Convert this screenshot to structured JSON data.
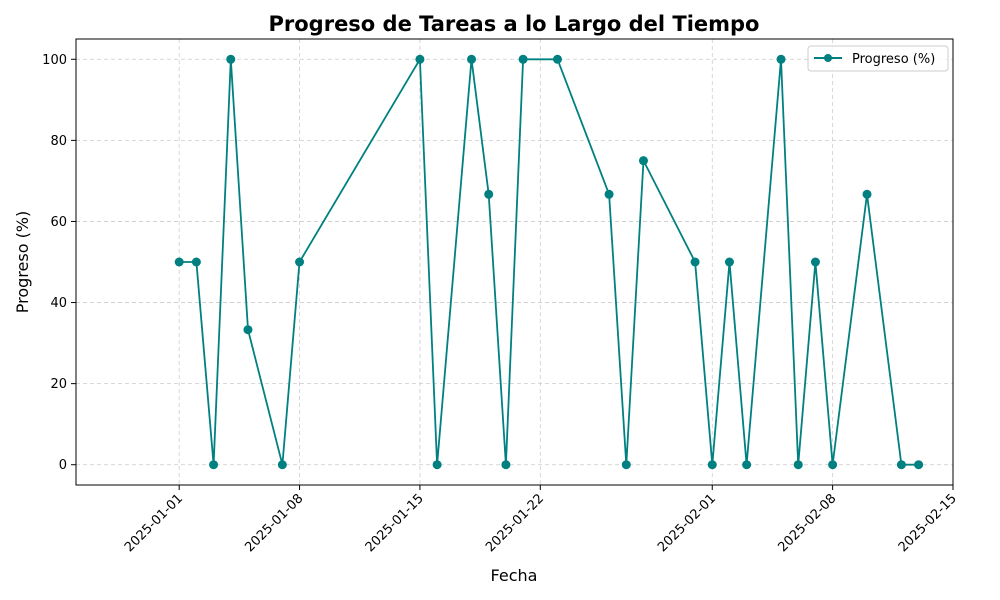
{
  "chart_data": {
    "type": "line",
    "title": "Progreso de Tareas a lo Largo del Tiempo",
    "xlabel": "Fecha",
    "ylabel": "Progreso (%)",
    "xlim": [
      "2024-12-26",
      "2025-02-15"
    ],
    "ylim": [
      -5,
      105
    ],
    "grid": true,
    "legend_position": "top-right",
    "x_ticks": [
      "2025-01-01",
      "2025-01-08",
      "2025-01-15",
      "2025-01-22",
      "2025-02-01",
      "2025-02-08",
      "2025-02-15"
    ],
    "y_ticks": [
      0,
      20,
      40,
      60,
      80,
      100
    ],
    "series": [
      {
        "name": "Progreso (%)",
        "color": "#008080",
        "marker": "circle",
        "x": [
          "2025-01-01",
          "2025-01-02",
          "2025-01-03",
          "2025-01-04",
          "2025-01-05",
          "2025-01-07",
          "2025-01-08",
          "2025-01-15",
          "2025-01-16",
          "2025-01-18",
          "2025-01-19",
          "2025-01-20",
          "2025-01-21",
          "2025-01-23",
          "2025-01-26",
          "2025-01-27",
          "2025-01-28",
          "2025-01-31",
          "2025-02-01",
          "2025-02-02",
          "2025-02-03",
          "2025-02-05",
          "2025-02-06",
          "2025-02-07",
          "2025-02-08",
          "2025-02-10",
          "2025-02-12",
          "2025-02-13"
        ],
        "values": [
          50,
          50,
          0,
          100,
          33.3,
          0,
          50,
          100,
          0,
          100,
          66.7,
          0,
          100,
          100,
          66.7,
          0,
          75,
          50,
          0,
          50,
          0,
          100,
          0,
          50,
          0,
          66.7,
          0,
          0
        ]
      }
    ]
  }
}
